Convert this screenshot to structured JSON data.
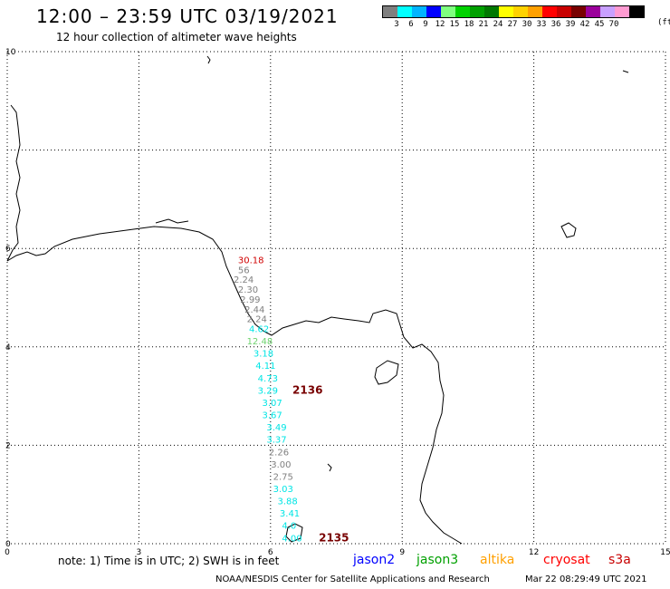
{
  "header": {
    "title": "12:00 – 23:59 UTC 03/19/2021",
    "subtitle": "12 hour collection of altimeter wave heights"
  },
  "color_legend": {
    "unit": "(ft)",
    "bins": [
      {
        "label": "",
        "color": "#7f7f7f"
      },
      {
        "label": "3",
        "color": "#00ffff"
      },
      {
        "label": "6",
        "color": "#00b4ff"
      },
      {
        "label": "9",
        "color": "#0000ff"
      },
      {
        "label": "12",
        "color": "#7fff7f"
      },
      {
        "label": "15",
        "color": "#00d200"
      },
      {
        "label": "18",
        "color": "#00a000"
      },
      {
        "label": "21",
        "color": "#007800"
      },
      {
        "label": "24",
        "color": "#ffff00"
      },
      {
        "label": "27",
        "color": "#ffd200"
      },
      {
        "label": "30",
        "color": "#ffa000"
      },
      {
        "label": "33",
        "color": "#ff0000"
      },
      {
        "label": "36",
        "color": "#c80000"
      },
      {
        "label": "39",
        "color": "#780000"
      },
      {
        "label": "42",
        "color": "#9b009b"
      },
      {
        "label": "45",
        "color": "#c8a0ff"
      },
      {
        "label": "70",
        "color": "#ff9bd2"
      },
      {
        "label": "",
        "color": "#000000"
      }
    ]
  },
  "axes": {
    "x_ticks": [
      "0",
      "3",
      "6",
      "9",
      "12",
      "15"
    ],
    "y_ticks": [
      "0",
      "2",
      "4",
      "6",
      "10"
    ]
  },
  "track_labels": [
    {
      "text": "30.18",
      "color": "#d00000",
      "lon": 5.3,
      "lat": 5.7
    },
    {
      "text": "56",
      "color": "#808080",
      "lon": 5.3,
      "lat": 5.5
    },
    {
      "text": "2.24",
      "color": "#808080",
      "lon": 5.2,
      "lat": 5.3
    },
    {
      "text": "2.30",
      "color": "#808080",
      "lon": 5.3,
      "lat": 5.1
    },
    {
      "text": "2.99",
      "color": "#808080",
      "lon": 5.35,
      "lat": 4.9
    },
    {
      "text": "2.44",
      "color": "#808080",
      "lon": 5.45,
      "lat": 4.7
    },
    {
      "text": "2.24",
      "color": "#808080",
      "lon": 5.5,
      "lat": 4.5
    },
    {
      "text": "4.62",
      "color": "#00e5e5",
      "lon": 5.55,
      "lat": 4.3
    },
    {
      "text": "12.48",
      "color": "#6ed36e",
      "lon": 5.5,
      "lat": 4.05
    },
    {
      "text": "3.18",
      "color": "#00e5e5",
      "lon": 5.65,
      "lat": 3.8
    },
    {
      "text": "4.11",
      "color": "#00e5e5",
      "lon": 5.7,
      "lat": 3.55
    },
    {
      "text": "4.73",
      "color": "#00e5e5",
      "lon": 5.75,
      "lat": 3.3
    },
    {
      "text": "3.29",
      "color": "#00e5e5",
      "lon": 5.75,
      "lat": 3.05
    },
    {
      "text": "3.07",
      "color": "#00e5e5",
      "lon": 5.85,
      "lat": 2.8
    },
    {
      "text": "3.67",
      "color": "#00e5e5",
      "lon": 5.85,
      "lat": 2.55
    },
    {
      "text": "3.49",
      "color": "#00e5e5",
      "lon": 5.95,
      "lat": 2.3
    },
    {
      "text": "3.37",
      "color": "#00e5e5",
      "lon": 5.95,
      "lat": 2.05
    },
    {
      "text": "2.26",
      "color": "#808080",
      "lon": 6.0,
      "lat": 1.8
    },
    {
      "text": "3.00",
      "color": "#808080",
      "lon": 6.05,
      "lat": 1.55
    },
    {
      "text": "2.75",
      "color": "#808080",
      "lon": 6.1,
      "lat": 1.3
    },
    {
      "text": "3.03",
      "color": "#00e5e5",
      "lon": 6.1,
      "lat": 1.05
    },
    {
      "text": "3.88",
      "color": "#00e5e5",
      "lon": 6.2,
      "lat": 0.8
    },
    {
      "text": "3.41",
      "color": "#00e5e5",
      "lon": 6.25,
      "lat": 0.55
    },
    {
      "text": "4.0",
      "color": "#00e5e5",
      "lon": 6.3,
      "lat": 0.3
    },
    {
      "text": "4.00",
      "color": "#00e5e5",
      "lon": 6.3,
      "lat": 0.05
    }
  ],
  "time_labels": [
    {
      "text": "2136",
      "color": "#780000",
      "lon": 6.5,
      "lat": 3.05
    },
    {
      "text": "2135",
      "color": "#780000",
      "lon": 7.1,
      "lat": 0.05
    }
  ],
  "bottom": {
    "note": "note: 1) Time is in UTC; 2) SWH is in feet",
    "satellites": [
      {
        "name": "jason2",
        "color": "#0000ff"
      },
      {
        "name": "jason3",
        "color": "#00a000"
      },
      {
        "name": "altika",
        "color": "#ffa000"
      },
      {
        "name": "cryosat",
        "color": "#ff0000"
      },
      {
        "name": "s3a",
        "color": "#c80000"
      }
    ],
    "credit": "NOAA/NESDIS Center for Satellite Applications and Research",
    "generated": "Mar 22 08:29:49 UTC 2021"
  }
}
